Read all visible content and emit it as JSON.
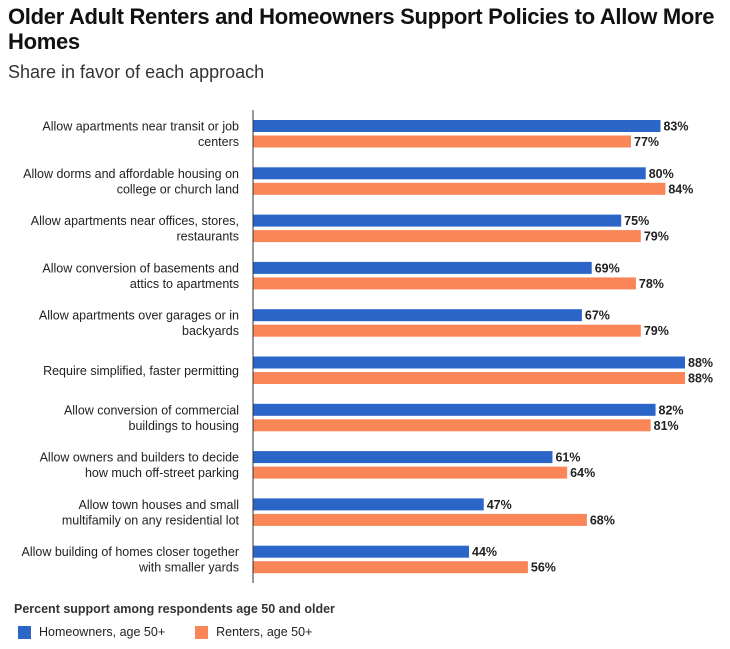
{
  "title": "Older Adult Renters and Homeowners Support Policies to Allow More Homes",
  "subtitle": "Share in favor of each approach",
  "colors": {
    "homeowners": "#2c65c8",
    "renters": "#fa8556",
    "axis": "#333333"
  },
  "legend": {
    "title": "Percent support among respondents age 50 and older",
    "items": [
      {
        "label": "Homeowners, age 50+",
        "color": "#2c65c8"
      },
      {
        "label": "Renters, age 50+",
        "color": "#fa8556"
      }
    ]
  },
  "chart_data": {
    "type": "bar",
    "orientation": "horizontal",
    "categories": [
      [
        "Allow apartments near transit or job",
        "centers"
      ],
      [
        "Allow dorms and affordable housing on",
        "college or church land"
      ],
      [
        "Allow apartments near offices, stores,",
        "restaurants"
      ],
      [
        "Allow conversion of basements and",
        "attics to apartments"
      ],
      [
        "Allow apartments over garages or in",
        "backyards"
      ],
      [
        "Require simplified, faster permitting"
      ],
      [
        "Allow conversion of commercial",
        "buildings to housing"
      ],
      [
        "Allow owners and builders to decide",
        "how much off-street parking"
      ],
      [
        "Allow town houses and small",
        "multifamily on any residential lot"
      ],
      [
        "Allow building of homes closer together",
        "with smaller yards"
      ]
    ],
    "series": [
      {
        "name": "Homeowners, age 50+",
        "values": [
          83,
          80,
          75,
          69,
          67,
          88,
          82,
          61,
          47,
          44
        ]
      },
      {
        "name": "Renters, age 50+",
        "values": [
          77,
          84,
          79,
          78,
          79,
          88,
          81,
          64,
          68,
          56
        ]
      }
    ],
    "value_suffix": "%",
    "xlim": [
      0,
      88
    ],
    "grid": false,
    "legend_position": "bottom-left"
  }
}
